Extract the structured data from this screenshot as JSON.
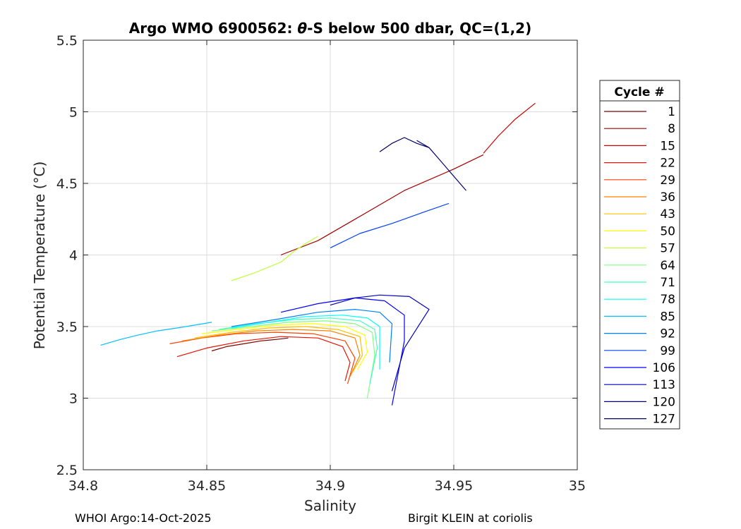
{
  "chart_data": {
    "type": "line",
    "title_prefix": "Argo WMO 6900562: ",
    "title_symbol": "θ",
    "title_suffix": "-S below 500 dbar,  QC=(1,2)",
    "xlabel": "Salinity",
    "ylabel": "Potential Temperature (°C)",
    "xlim": [
      34.8,
      35.0
    ],
    "ylim": [
      2.5,
      5.5
    ],
    "xticks": [
      34.8,
      34.85,
      34.9,
      34.95,
      35.0
    ],
    "xtick_labels": [
      "34.8",
      "34.85",
      "34.9",
      "34.95",
      "35"
    ],
    "yticks": [
      2.5,
      3.0,
      3.5,
      4.0,
      4.5,
      5.0,
      5.5
    ],
    "ytick_labels": [
      "2.5",
      "3",
      "3.5",
      "4",
      "4.5",
      "5",
      "5.5"
    ],
    "grid": true,
    "legend_title": "Cycle #",
    "legend_position": "right",
    "series": [
      {
        "name": "1",
        "color": "#7f0000",
        "x": [
          34.852,
          34.858,
          34.865,
          34.872,
          34.878,
          34.883
        ],
        "y": [
          3.33,
          3.36,
          3.38,
          3.4,
          3.41,
          3.42
        ]
      },
      {
        "name": "8",
        "color": "#a30000",
        "x": [
          34.962,
          34.95,
          34.93,
          34.91,
          34.895,
          34.88
        ],
        "y": [
          4.7,
          4.6,
          4.45,
          4.25,
          4.1,
          4.0
        ]
      },
      {
        "name": "15",
        "color": "#cc0000",
        "x": [
          34.983,
          34.975,
          34.968,
          34.962
        ],
        "y": [
          5.06,
          4.95,
          4.83,
          4.71
        ]
      },
      {
        "name": "22",
        "color": "#e81400",
        "x": [
          34.838,
          34.85,
          34.865,
          34.88,
          34.895,
          34.905,
          34.908,
          34.906
        ],
        "y": [
          3.29,
          3.35,
          3.4,
          3.43,
          3.42,
          3.36,
          3.25,
          3.12
        ]
      },
      {
        "name": "29",
        "color": "#ff4000",
        "x": [
          34.835,
          34.848,
          34.862,
          34.878,
          34.893,
          34.906,
          34.91,
          34.907
        ],
        "y": [
          3.38,
          3.42,
          3.45,
          3.46,
          3.45,
          3.4,
          3.28,
          3.1
        ]
      },
      {
        "name": "36",
        "color": "#ff8000",
        "x": [
          34.84,
          34.855,
          34.87,
          34.885,
          34.9,
          34.91,
          34.912,
          34.908
        ],
        "y": [
          3.4,
          3.44,
          3.47,
          3.48,
          3.47,
          3.42,
          3.3,
          3.15
        ]
      },
      {
        "name": "43",
        "color": "#ffbf00",
        "x": [
          34.845,
          34.86,
          34.875,
          34.89,
          34.903,
          34.912,
          34.913,
          34.909
        ],
        "y": [
          3.42,
          3.46,
          3.49,
          3.5,
          3.48,
          3.43,
          3.3,
          3.18
        ]
      },
      {
        "name": "50",
        "color": "#ffff00",
        "x": [
          34.848,
          34.862,
          34.878,
          34.893,
          34.906,
          34.914,
          34.915,
          34.911
        ],
        "y": [
          3.45,
          3.48,
          3.51,
          3.52,
          3.5,
          3.44,
          3.32,
          3.2
        ]
      },
      {
        "name": "57",
        "color": "#bfff40",
        "x": [
          34.86,
          34.87,
          34.88,
          34.885,
          34.89,
          34.895
        ],
        "y": [
          3.82,
          3.88,
          3.95,
          4.02,
          4.08,
          4.13
        ]
      },
      {
        "name": "64",
        "color": "#80ff80",
        "x": [
          34.852,
          34.868,
          34.883,
          34.898,
          34.91,
          34.917,
          34.918,
          34.915
        ],
        "y": [
          3.47,
          3.5,
          3.53,
          3.54,
          3.52,
          3.46,
          3.3,
          3.0
        ]
      },
      {
        "name": "71",
        "color": "#40ffbf",
        "x": [
          34.855,
          34.87,
          34.886,
          34.9,
          34.912,
          34.918,
          34.919,
          34.916
        ],
        "y": [
          3.48,
          3.52,
          3.55,
          3.56,
          3.54,
          3.48,
          3.35,
          3.1
        ]
      },
      {
        "name": "78",
        "color": "#00ffff",
        "x": [
          34.86,
          34.875,
          34.89,
          34.905,
          34.915,
          34.92,
          34.92
        ],
        "y": [
          3.49,
          3.53,
          3.57,
          3.58,
          3.56,
          3.5,
          3.2
        ]
      },
      {
        "name": "85",
        "color": "#00bfff",
        "x": [
          34.807,
          34.815,
          34.822,
          34.83,
          34.838,
          34.845,
          34.852
        ],
        "y": [
          3.37,
          3.41,
          3.44,
          3.47,
          3.49,
          3.51,
          3.53
        ]
      },
      {
        "name": "92",
        "color": "#0080ff",
        "x": [
          34.86,
          34.878,
          34.895,
          34.91,
          34.92,
          34.925,
          34.924
        ],
        "y": [
          3.5,
          3.55,
          3.6,
          3.62,
          3.6,
          3.52,
          3.25
        ]
      },
      {
        "name": "99",
        "color": "#0040ff",
        "x": [
          34.9,
          34.912,
          34.925,
          34.938,
          34.948
        ],
        "y": [
          4.05,
          4.15,
          4.22,
          4.3,
          4.36
        ]
      },
      {
        "name": "106",
        "color": "#0000ff",
        "x": [
          34.88,
          34.895,
          34.91,
          34.922,
          34.93,
          34.93,
          34.925
        ],
        "y": [
          3.6,
          3.66,
          3.7,
          3.68,
          3.58,
          3.4,
          2.95
        ]
      },
      {
        "name": "113",
        "color": "#0000bf",
        "x": [
          34.9,
          34.91,
          34.92,
          34.932,
          34.94,
          34.93,
          34.925
        ],
        "y": [
          3.65,
          3.7,
          3.72,
          3.71,
          3.62,
          3.35,
          3.05
        ]
      },
      {
        "name": "120",
        "color": "#000080",
        "x": [
          34.935,
          34.94,
          34.945,
          34.95,
          34.955
        ],
        "y": [
          4.8,
          4.75,
          4.65,
          4.55,
          4.45
        ]
      },
      {
        "name": "127",
        "color": "#000060",
        "x": [
          34.92,
          34.925,
          34.93,
          34.935,
          34.94
        ],
        "y": [
          4.72,
          4.78,
          4.82,
          4.78,
          4.75
        ]
      }
    ]
  },
  "footer": {
    "left": "WHOI Argo:14-Oct-2025",
    "right": "Birgit KLEIN at coriolis"
  }
}
